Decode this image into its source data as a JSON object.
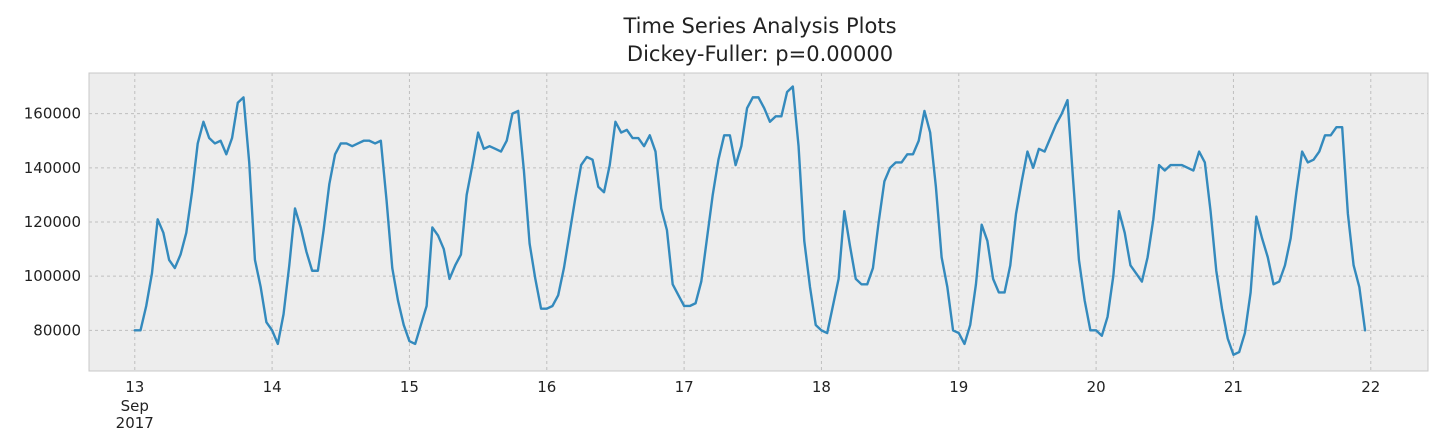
{
  "chart_data": {
    "type": "line",
    "title": "Time Series Analysis Plots",
    "subtitle": "Dickey-Fuller: p=0.00000",
    "xlabel": "",
    "ylabel": "",
    "x_start": "2017-09-13 00:00",
    "x_step_hours": 1,
    "xlim": [
      "2017-09-12 16:00",
      "2017-09-22 10:00"
    ],
    "ylim": [
      65000,
      175000
    ],
    "x_ticks": [
      {
        "date": "2017-09-13",
        "label": "13",
        "sub": [
          "Sep",
          "2017"
        ]
      },
      {
        "date": "2017-09-14",
        "label": "14"
      },
      {
        "date": "2017-09-15",
        "label": "15"
      },
      {
        "date": "2017-09-16",
        "label": "16"
      },
      {
        "date": "2017-09-17",
        "label": "17"
      },
      {
        "date": "2017-09-18",
        "label": "18"
      },
      {
        "date": "2017-09-19",
        "label": "19"
      },
      {
        "date": "2017-09-20",
        "label": "20"
      },
      {
        "date": "2017-09-21",
        "label": "21"
      },
      {
        "date": "2017-09-22",
        "label": "22"
      }
    ],
    "y_ticks": [
      80000,
      100000,
      120000,
      140000,
      160000
    ],
    "grid": true,
    "background": "#ededed",
    "series": [
      {
        "color": "#348abd",
        "values": [
          80000,
          80000,
          89000,
          101000,
          121000,
          116000,
          106000,
          103000,
          108000,
          116000,
          131000,
          149000,
          157000,
          151000,
          149000,
          150000,
          145000,
          151000,
          164000,
          166000,
          142000,
          106000,
          96000,
          83000,
          80000,
          75000,
          86000,
          104000,
          125000,
          118000,
          109000,
          102000,
          102000,
          117000,
          134000,
          145000,
          149000,
          149000,
          148000,
          149000,
          150000,
          150000,
          149000,
          150000,
          128000,
          103000,
          91000,
          82000,
          76000,
          75000,
          82000,
          89000,
          118000,
          115000,
          110000,
          99000,
          104000,
          108000,
          130000,
          141000,
          153000,
          147000,
          148000,
          147000,
          146000,
          150000,
          160000,
          161000,
          139000,
          112000,
          99000,
          88000,
          88000,
          89000,
          93000,
          103000,
          116000,
          129000,
          141000,
          144000,
          143000,
          133000,
          131000,
          141000,
          157000,
          153000,
          154000,
          151000,
          151000,
          148000,
          152000,
          146000,
          125000,
          117000,
          97000,
          93000,
          89000,
          89000,
          90000,
          98000,
          114000,
          130000,
          143000,
          152000,
          152000,
          141000,
          148000,
          162000,
          166000,
          166000,
          162000,
          157000,
          159000,
          159000,
          168000,
          170000,
          148000,
          113000,
          96000,
          82000,
          80000,
          79000,
          89000,
          99000,
          124000,
          111000,
          99000,
          97000,
          97000,
          103000,
          120000,
          135000,
          140000,
          142000,
          142000,
          145000,
          145000,
          150000,
          161000,
          153000,
          133000,
          107000,
          96000,
          80000,
          79000,
          75000,
          82000,
          97000,
          119000,
          113000,
          99000,
          94000,
          94000,
          104000,
          123000,
          135000,
          146000,
          140000,
          147000,
          146000,
          151000,
          156000,
          160000,
          165000,
          135000,
          106000,
          91000,
          80000,
          80000,
          78000,
          85000,
          100000,
          124000,
          116000,
          104000,
          101000,
          98000,
          107000,
          121000,
          141000,
          139000,
          141000,
          141000,
          141000,
          140000,
          139000,
          146000,
          142000,
          124000,
          102000,
          88000,
          77000,
          71000,
          72000,
          79000,
          94000,
          122000,
          114000,
          107000,
          97000,
          98000,
          104000,
          114000,
          131000,
          146000,
          142000,
          143000,
          146000,
          152000,
          152000,
          155000,
          155000,
          123000,
          104000,
          96000,
          80000
        ]
      }
    ]
  }
}
